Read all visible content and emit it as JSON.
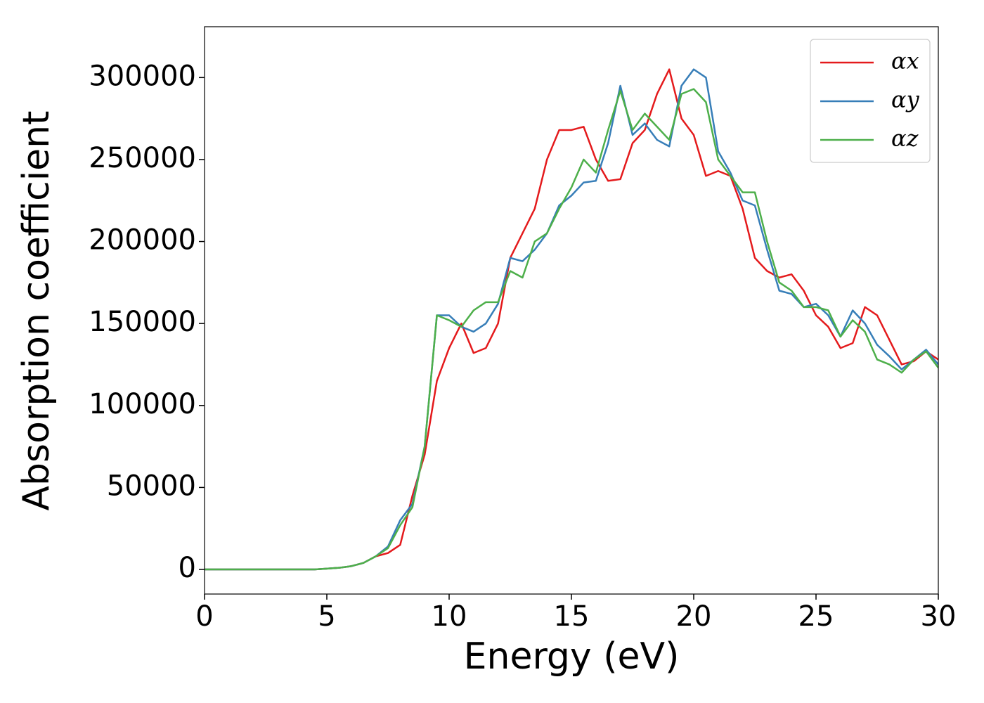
{
  "chart_data": {
    "type": "line",
    "x_label": "Energy (eV)",
    "y_label": "Absorption coefficient",
    "x": [
      0,
      0.5,
      1,
      1.5,
      2,
      2.5,
      3,
      3.5,
      4,
      4.5,
      5,
      5.5,
      6,
      6.5,
      7,
      7.5,
      8,
      8.5,
      9,
      9.5,
      10,
      10.5,
      11,
      11.5,
      12,
      12.5,
      13,
      13.5,
      14,
      14.5,
      15,
      15.5,
      16,
      16.5,
      17,
      17.5,
      18,
      18.5,
      19,
      19.5,
      20,
      20.5,
      21,
      21.5,
      22,
      22.5,
      23,
      23.5,
      24,
      24.5,
      25,
      25.5,
      26,
      26.5,
      27,
      27.5,
      28,
      28.5,
      29,
      29.5,
      30
    ],
    "series": [
      {
        "name": "αx",
        "color": "#e41a1c",
        "values": [
          0,
          0,
          0,
          0,
          0,
          0,
          0,
          0,
          0,
          0,
          500,
          1000,
          2000,
          4000,
          8000,
          10000,
          15000,
          45000,
          70000,
          115000,
          135000,
          150000,
          132000,
          135000,
          150000,
          190000,
          205000,
          220000,
          250000,
          268000,
          268000,
          270000,
          250000,
          237000,
          238000,
          260000,
          268000,
          290000,
          305000,
          275000,
          265000,
          240000,
          243000,
          240000,
          220000,
          190000,
          182000,
          178000,
          180000,
          170000,
          155000,
          148000,
          135000,
          138000,
          160000,
          155000,
          140000,
          125000,
          127000,
          133000,
          128000
        ]
      },
      {
        "name": "αy",
        "color": "#377eb8",
        "values": [
          0,
          0,
          0,
          0,
          0,
          0,
          0,
          0,
          0,
          0,
          500,
          1000,
          2000,
          4000,
          8000,
          14000,
          30000,
          40000,
          75000,
          155000,
          155000,
          148000,
          145000,
          150000,
          162000,
          190000,
          188000,
          195000,
          205000,
          222000,
          228000,
          236000,
          237000,
          260000,
          295000,
          265000,
          272000,
          262000,
          258000,
          295000,
          305000,
          300000,
          255000,
          242000,
          225000,
          222000,
          195000,
          170000,
          168000,
          160000,
          162000,
          155000,
          142000,
          158000,
          150000,
          137000,
          130000,
          122000,
          128000,
          134000,
          125000
        ]
      },
      {
        "name": "αz",
        "color": "#4daf4a",
        "values": [
          0,
          0,
          0,
          0,
          0,
          0,
          0,
          0,
          0,
          0,
          500,
          1000,
          2000,
          4000,
          8000,
          13000,
          27000,
          38000,
          75000,
          155000,
          152000,
          148000,
          158000,
          163000,
          163000,
          182000,
          178000,
          200000,
          205000,
          220000,
          233000,
          250000,
          242000,
          268000,
          292000,
          268000,
          278000,
          270000,
          262000,
          290000,
          293000,
          285000,
          250000,
          240000,
          230000,
          230000,
          200000,
          175000,
          170000,
          160000,
          160000,
          158000,
          142000,
          152000,
          145000,
          128000,
          125000,
          120000,
          128000,
          133000,
          123000
        ]
      }
    ],
    "xlim": [
      0,
      30
    ],
    "xticks": [
      0,
      5,
      10,
      15,
      20,
      25,
      30
    ],
    "ylim": [
      -15000,
      331000
    ],
    "yticks": [
      0,
      50000,
      100000,
      150000,
      200000,
      250000,
      300000
    ],
    "legend": "upper right"
  }
}
